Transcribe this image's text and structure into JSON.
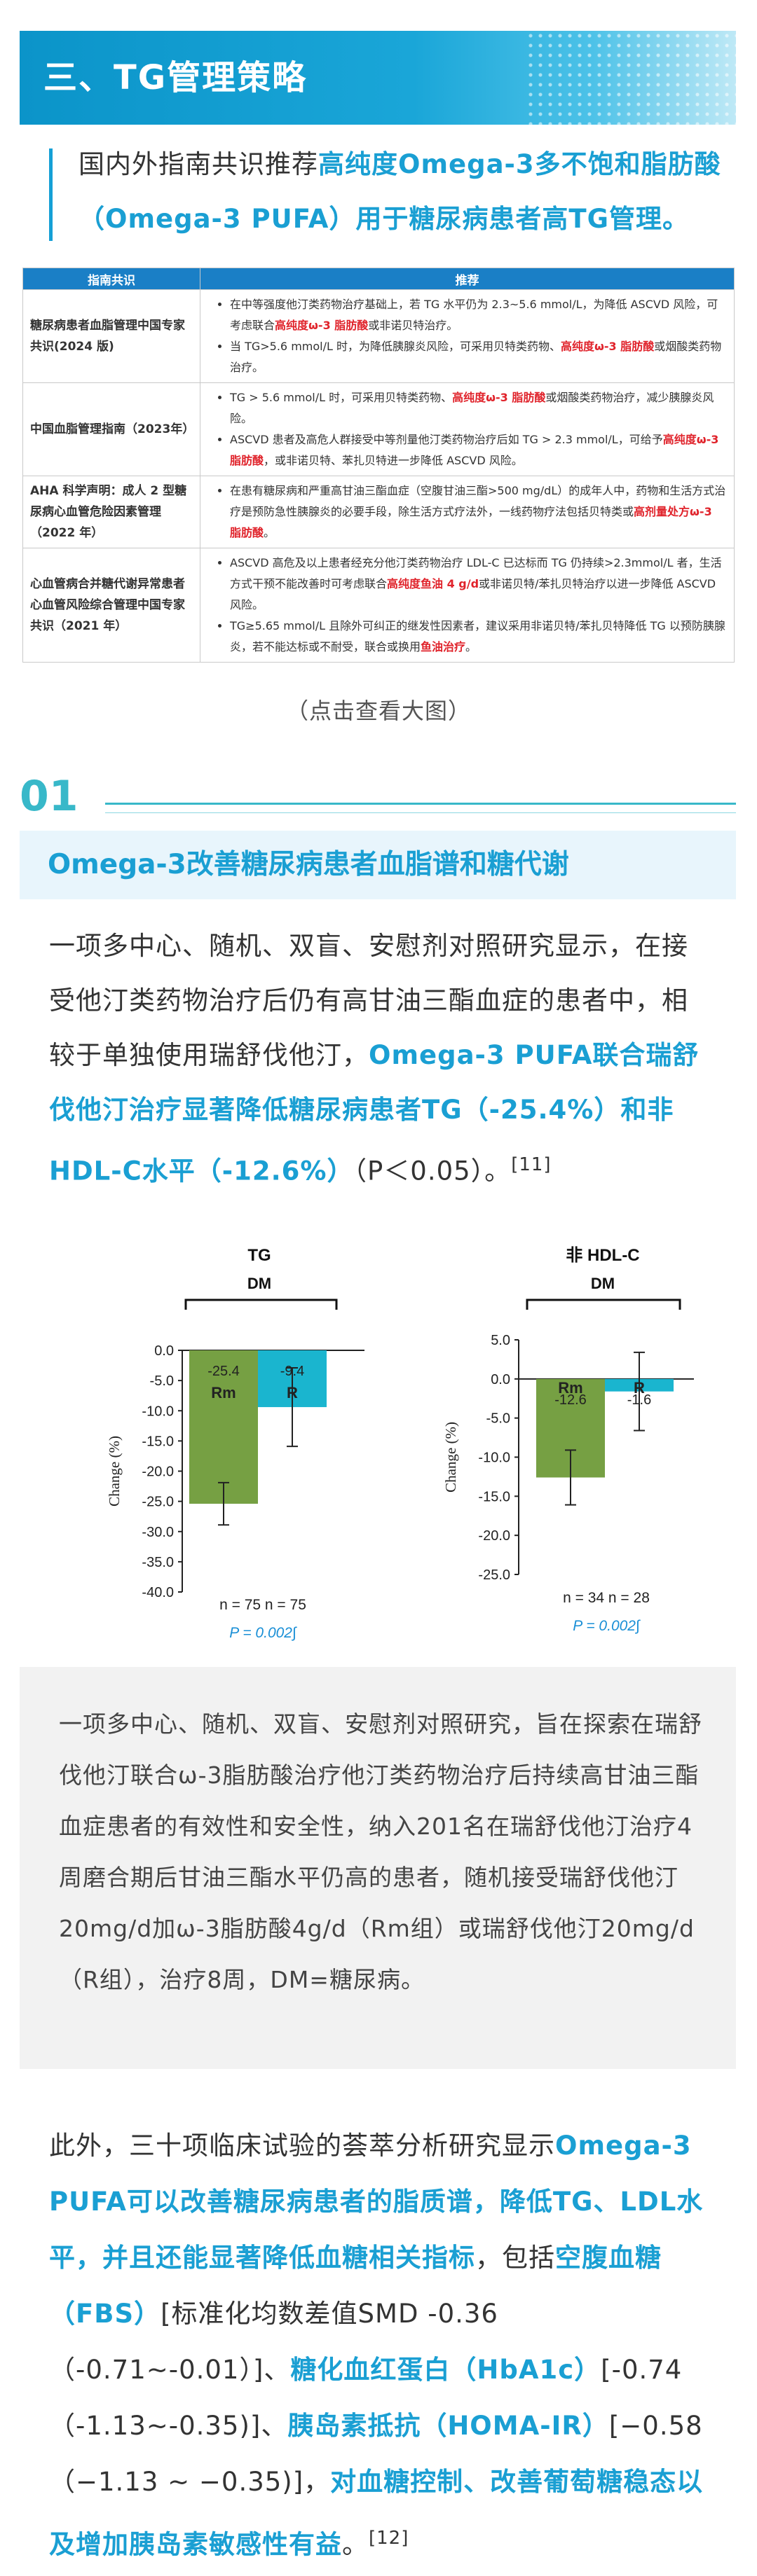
{
  "header": {
    "title": "三、TG管理策略"
  },
  "intro": {
    "t1": "国内外指南共识推荐",
    "t2": "高纯度Omega-3多不饱和脂肪酸（Omega-3 PUFA）用于糖尿病患者高TG管理。"
  },
  "table": {
    "col1": "指南共识",
    "col2": "推荐",
    "rows": [
      {
        "guide": "糖尿病患者血脂管理中国专家共识(2024 版)",
        "recs": [
          [
            "在中等强度他汀类药物治疗基础上，若 TG 水平仍为 2.3~5.6 mmol/L，为降低 ASCVD 风险，可考虑联合",
            "高纯度ω-3 脂肪酸",
            "或非诺贝特治疗。"
          ],
          [
            "当 TG>5.6 mmol/L 时，为降低胰腺炎风险，可采用贝特类药物、",
            "高纯度ω-3 脂肪酸",
            "或烟酸类药物治疗。"
          ]
        ]
      },
      {
        "guide": "中国血脂管理指南（2023年）",
        "recs": [
          [
            "TG > 5.6 mmol/L 时，可采用贝特类药物、",
            "高纯度ω-3 脂肪酸",
            "或烟酸类药物治疗，减少胰腺炎风险。"
          ],
          [
            "ASCVD 患者及高危人群接受中等剂量他汀类药物治疗后如 TG > 2.3 mmol/L，可给予",
            "高纯度ω-3 脂肪酸",
            "，或非诺贝特、苯扎贝特进一步降低 ASCVD 风险。"
          ]
        ]
      },
      {
        "guide": "AHA 科学声明：成人 2 型糖尿病心血管危险因素管理（2022 年）",
        "recs": [
          [
            "在患有糖尿病和严重高甘油三酯血症（空腹甘油三酯>500 mg/dL）的成年人中，药物和生活方式治疗是预防急性胰腺炎的必要手段，除生活方式疗法外，一线药物疗法包括贝特类或",
            "高剂量处方ω-3 脂肪酸",
            "。"
          ]
        ]
      },
      {
        "guide": "心血管病合并糖代谢异常患者心血管风险综合管理中国专家共识（2021 年）",
        "recs": [
          [
            "ASCVD 高危及以上患者经充分他汀类药物治疗 LDL-C 已达标而 TG 仍持续>2.3mmol/L 者，生活方式干预不能改善时可考虑联合",
            "高纯度鱼油 4 g/d",
            "或非诺贝特/苯扎贝特治疗以进一步降低 ASCVD 风险。"
          ],
          [
            "TG≥5.65 mmol/L 且除外可纠正的继发性因素者，建议采用非诺贝特/苯扎贝特降低 TG 以预防胰腺炎，若不能达标或不耐受，联合或换用",
            "鱼油治疗",
            "。"
          ]
        ]
      }
    ]
  },
  "caption": "（点击查看大图）",
  "section1": {
    "num": "01",
    "title": "Omega-3改善糖尿病患者血脂谱和糖代谢",
    "p1": "一项多中心、随机、双盲、安慰剂对照研究显示，在接受他汀类药物治疗后仍有高甘油三酯血症的患者中，相较于单独使用瑞舒伐他汀，",
    "p1hl": "Omega-3 PUFA联合瑞舒伐他汀治疗显著降低糖尿病患者TG（-25.4%）和非HDL-C水平（-12.6%）",
    "p1end": "（P＜0.05）。",
    "p1ref": "[11]"
  },
  "chart_data": [
    {
      "type": "bar",
      "title": "TG",
      "subtitle": "DM",
      "ylabel": "Change (%)",
      "yticks": [
        "0.0",
        "-5.0",
        "-10.0",
        "-15.0",
        "-20.0",
        "-25.0",
        "-30.0",
        "-35.0",
        "-40.0"
      ],
      "ylim": [
        -40,
        0
      ],
      "categories": [
        "Rm",
        "R"
      ],
      "values": [
        -25.4,
        -9.4
      ],
      "value_labels": [
        "-25.4",
        "-9.4"
      ],
      "errors": [
        3.5,
        6.5
      ],
      "colors": [
        "#76a043",
        "#1ab5cf"
      ],
      "n": "n = 75   n = 75",
      "p": "P =  0.002∫"
    },
    {
      "type": "bar",
      "title": "非 HDL-C",
      "subtitle": "DM",
      "ylabel": "Change (%)",
      "yticks": [
        "5.0",
        "0.0",
        "-5.0",
        "-10.0",
        "-15.0",
        "-20.0",
        "-25.0"
      ],
      "ylim": [
        -25,
        5
      ],
      "categories": [
        "Rm",
        "R"
      ],
      "values": [
        -12.6,
        -1.6
      ],
      "value_labels": [
        "-12.6",
        "-1.6"
      ],
      "errors": [
        3.5,
        5.0
      ],
      "colors": [
        "#76a043",
        "#1ab5cf"
      ],
      "n": "n = 34   n = 28",
      "p": "P = 0.002∫"
    }
  ],
  "note": "一项多中心、随机、双盲、安慰剂对照研究，旨在探索在瑞舒伐他汀联合ω-3脂肪酸治疗他汀类药物治疗后持续高甘油三酯血症患者的有效性和安全性，纳入201名在瑞舒伐他汀治疗4周磨合期后甘油三酯水平仍高的患者，随机接受瑞舒伐他汀20mg/d加ω-3脂肪酸4g/d（Rm组）或瑞舒伐他汀20mg/d（R组），治疗8周，DM=糖尿病。",
  "p3": {
    "a": "此外，三十项临床试验的荟萃分析研究显示",
    "b": "Omega-3 PUFA可以改善糖尿病患者的脂质谱，降低TG、LDL水平，并且还能显著降低血糖相关指标",
    "c": "，包括",
    "d": "空腹血糖（FBS）",
    "e": "[标准化均数差值SMD -0.36（-0.71~-0.01）]、",
    "f": "糖化血红蛋白（HbA1c）",
    "g": "[-0.74（-1.13~-0.35)]、",
    "h": "胰岛素抵抗（HOMA-IR）",
    "i": "[−0.58（−1.13 ~ −0.35)]，",
    "j": "对血糖控制、改善葡萄糖稳态以及增加胰岛素敏感性有益",
    "k": "。",
    "ref": "[12]"
  }
}
